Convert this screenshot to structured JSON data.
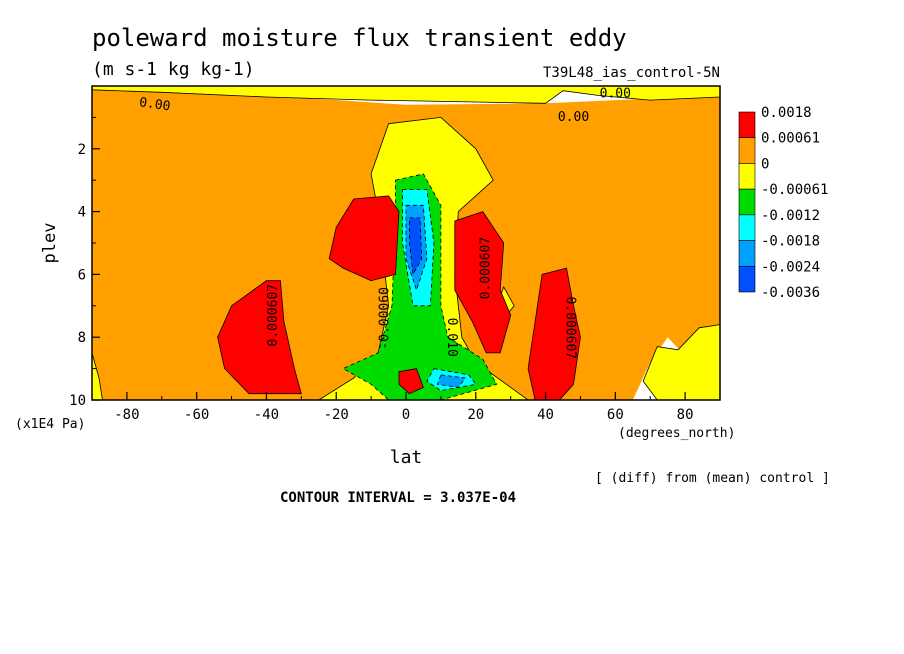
{
  "chart_data": {
    "type": "heatmap",
    "title": "poleward moisture flux transient eddy",
    "subtitle": "(m s-1 kg kg-1)",
    "run_label": "T39L48_ias_control-5N",
    "xlabel": "lat",
    "x_units": "(degrees_north)",
    "ylabel": "plev",
    "y_units": "(x1E4 Pa)",
    "xlim": [
      -90,
      90
    ],
    "ylim": [
      10,
      0
    ],
    "x_ticks": [
      -80,
      -60,
      -40,
      -20,
      0,
      20,
      40,
      60,
      80
    ],
    "y_ticks": [
      2,
      4,
      6,
      8,
      10
    ],
    "x_tick_labels": [
      "-80",
      "-60",
      "-40",
      "-20",
      "0",
      "20",
      "40",
      "60",
      "80"
    ],
    "y_tick_labels": [
      "2",
      "4",
      "6",
      "8",
      "10"
    ],
    "contour_interval": "CONTOUR INTERVAL = 3.037E-04",
    "footnote": "[ (diff) from (mean) control ]",
    "legend": {
      "placement": "right",
      "labels": [
        "0.0018",
        "0.00061",
        "0",
        "-0.00061",
        "-0.0012",
        "-0.0018",
        "-0.0024",
        "-0.0036"
      ],
      "colors": [
        "#ff0000",
        "#ffa000",
        "#ffff00",
        "#00dc00",
        "#00ffff",
        "#00a0ff",
        "#0050ff"
      ]
    },
    "contour_labels": [
      {
        "text": "0.00",
        "lat": -72,
        "plev": 0.6,
        "angle": 8
      },
      {
        "text": "0.00",
        "lat": 48,
        "plev": 1.0,
        "angle": 0
      },
      {
        "text": "0.00",
        "lat": 60,
        "plev": 0.25,
        "angle": 0
      },
      {
        "text": "0.000607",
        "lat": -38,
        "plev": 7.3,
        "angle": -90
      },
      {
        "text": "-0.00060",
        "lat": -6,
        "plev": 7.4,
        "angle": -90
      },
      {
        "text": "0.010",
        "lat": 13,
        "plev": 8.0,
        "angle": 90
      },
      {
        "text": "0.000607",
        "lat": 23,
        "plev": 5.8,
        "angle": -90
      },
      {
        "text": "0.000607",
        "lat": 47,
        "plev": 7.7,
        "angle": 90
      }
    ],
    "regions": [
      {
        "value": 0.00061,
        "color": "#ffa000",
        "points": [
          [
            -90,
            0.1
          ],
          [
            -70,
            0.15
          ],
          [
            -40,
            0.3
          ],
          [
            0,
            0.6
          ],
          [
            40,
            0.55
          ],
          [
            70,
            0.4
          ],
          [
            90,
            0.35
          ],
          [
            90,
            7.8
          ],
          [
            85,
            8.0
          ],
          [
            80,
            8.6
          ],
          [
            75,
            8.0
          ],
          [
            70,
            8.8
          ],
          [
            65,
            10
          ],
          [
            -90,
            10
          ]
        ]
      },
      {
        "value": 0,
        "color": "#ffff00",
        "points": [
          [
            -90,
            0
          ],
          [
            90,
            0
          ],
          [
            90,
            0.35
          ],
          [
            70,
            0.45
          ],
          [
            55,
            0.3
          ],
          [
            45,
            0.15
          ],
          [
            40,
            0.55
          ],
          [
            -10,
            0.45
          ],
          [
            -40,
            0.35
          ],
          [
            -70,
            0.2
          ],
          [
            -90,
            0.12
          ]
        ]
      },
      {
        "value": 0,
        "color": "#ffff00",
        "points": [
          [
            -90,
            8.5
          ],
          [
            -88,
            9.3
          ],
          [
            -87,
            10
          ],
          [
            -90,
            10
          ]
        ]
      },
      {
        "value": 0,
        "color": "#ffff00",
        "points": [
          [
            90,
            7.6
          ],
          [
            84,
            7.7
          ],
          [
            78,
            8.4
          ],
          [
            72,
            8.3
          ],
          [
            68,
            9.4
          ],
          [
            72,
            10
          ],
          [
            90,
            10
          ]
        ]
      },
      {
        "value": 0,
        "color": "#ffff00",
        "points": [
          [
            28,
            6.4
          ],
          [
            31,
            7.0
          ],
          [
            28,
            7.4
          ],
          [
            26,
            7.0
          ]
        ]
      },
      {
        "value": 0,
        "color": "#ffff00",
        "points": [
          [
            -5,
            1.2
          ],
          [
            10,
            1.0
          ],
          [
            20,
            2.0
          ],
          [
            25,
            3.0
          ],
          [
            15,
            4.0
          ],
          [
            14,
            6.0
          ],
          [
            16,
            8.0
          ],
          [
            20,
            8.8
          ],
          [
            30,
            9.6
          ],
          [
            35,
            10
          ],
          [
            -25,
            10
          ],
          [
            -15,
            9.3
          ],
          [
            -8,
            8.5
          ],
          [
            -5,
            7.0
          ],
          [
            -8,
            4.0
          ],
          [
            -10,
            2.8
          ]
        ]
      },
      {
        "value": -0.00061,
        "color": "#00dc00",
        "points": [
          [
            -3,
            3.0
          ],
          [
            5,
            2.8
          ],
          [
            10,
            3.8
          ],
          [
            10,
            7.0
          ],
          [
            12,
            8.0
          ],
          [
            22,
            8.7
          ],
          [
            26,
            9.5
          ],
          [
            10,
            10
          ],
          [
            -5,
            10
          ],
          [
            -10,
            9.5
          ],
          [
            -18,
            9.0
          ],
          [
            -8,
            8.5
          ],
          [
            -4,
            7.0
          ],
          [
            -3,
            4.0
          ]
        ]
      },
      {
        "value": -0.0012,
        "color": "#00ffff",
        "points": [
          [
            -1,
            3.3
          ],
          [
            6,
            3.3
          ],
          [
            8,
            5.0
          ],
          [
            7,
            7.0
          ],
          [
            2,
            7.0
          ],
          [
            -1,
            5.0
          ]
        ]
      },
      {
        "value": -0.0012,
        "color": "#00ffff",
        "points": [
          [
            8,
            9.0
          ],
          [
            18,
            9.2
          ],
          [
            20,
            9.5
          ],
          [
            10,
            9.7
          ],
          [
            6,
            9.4
          ]
        ]
      },
      {
        "value": -0.0018,
        "color": "#00a0ff",
        "points": [
          [
            0,
            3.8
          ],
          [
            5,
            3.8
          ],
          [
            6,
            5.5
          ],
          [
            3,
            6.5
          ],
          [
            0,
            5.5
          ]
        ]
      },
      {
        "value": -0.0018,
        "color": "#00a0ff",
        "points": [
          [
            10,
            9.2
          ],
          [
            17,
            9.3
          ],
          [
            15,
            9.6
          ],
          [
            9,
            9.5
          ]
        ]
      },
      {
        "value": -0.0024,
        "color": "#0050ff",
        "points": [
          [
            1,
            4.2
          ],
          [
            4,
            4.2
          ],
          [
            4.5,
            5.5
          ],
          [
            2,
            6.0
          ],
          [
            1,
            5.0
          ]
        ]
      },
      {
        "value": 0.0018,
        "color": "#ff0000",
        "points": [
          [
            -50,
            7.0
          ],
          [
            -40,
            6.2
          ],
          [
            -36,
            6.2
          ],
          [
            -35,
            7.5
          ],
          [
            -32,
            9.0
          ],
          [
            -30,
            9.8
          ],
          [
            -45,
            9.8
          ],
          [
            -52,
            9.0
          ],
          [
            -54,
            8.0
          ]
        ]
      },
      {
        "value": 0.0018,
        "color": "#ff0000",
        "points": [
          [
            -20,
            4.5
          ],
          [
            -15,
            3.6
          ],
          [
            -5,
            3.5
          ],
          [
            -2,
            4.0
          ],
          [
            -3,
            6.0
          ],
          [
            -10,
            6.2
          ],
          [
            -18,
            5.8
          ],
          [
            -22,
            5.5
          ]
        ]
      },
      {
        "value": 0.0018,
        "color": "#ff0000",
        "points": [
          [
            14,
            4.3
          ],
          [
            22,
            4.0
          ],
          [
            28,
            5.0
          ],
          [
            27,
            6.5
          ],
          [
            30,
            7.3
          ],
          [
            27,
            8.5
          ],
          [
            23,
            8.5
          ],
          [
            19,
            7.5
          ],
          [
            14,
            6.5
          ]
        ]
      },
      {
        "value": 0.0018,
        "color": "#ff0000",
        "points": [
          [
            39,
            6.0
          ],
          [
            46,
            5.8
          ],
          [
            48,
            7.0
          ],
          [
            50,
            8.0
          ],
          [
            48,
            9.5
          ],
          [
            44,
            10
          ],
          [
            37,
            10
          ],
          [
            35,
            9.0
          ],
          [
            37,
            7.5
          ]
        ]
      },
      {
        "value": 0.0018,
        "color": "#ff0000",
        "points": [
          [
            -2,
            9.1
          ],
          [
            3,
            9.0
          ],
          [
            5,
            9.6
          ],
          [
            1,
            9.8
          ],
          [
            -2,
            9.5
          ]
        ]
      }
    ]
  }
}
